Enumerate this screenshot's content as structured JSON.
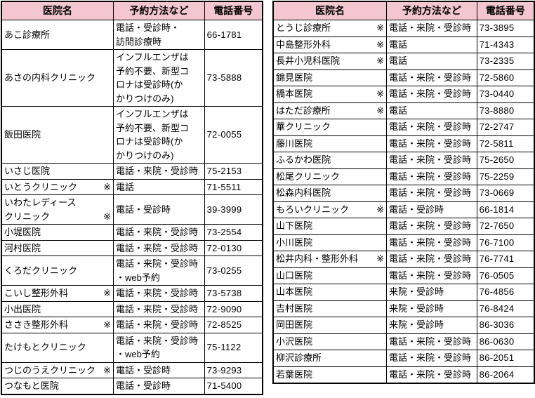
{
  "colors": {
    "page_bg": "#FFFFFF",
    "header_bg": "#F3C6D2",
    "border": "#000000",
    "text": "#000000"
  },
  "marker_symbol": "※",
  "headers": {
    "clinic": "医院名",
    "method": "予約方法など",
    "phone": "電話番号"
  },
  "left_table": {
    "rows": [
      {
        "name": "あこ診療所",
        "marker": "",
        "method": "電話・受診時・\n訪問診療時",
        "phone": "66-1781"
      },
      {
        "name": "あさの内科クリニック",
        "marker": "",
        "method": "インフルエンザは\n予約不要、新型コ\nロナは受診時(か\nかりつけのみ)",
        "phone": "73-5888"
      },
      {
        "name": "飯田医院",
        "marker": "",
        "method": "インフルエンザは\n予約不要、新型コ\nロナは受診時(か\nかりつけのみ)",
        "phone": "72-0055"
      },
      {
        "name": "いさじ医院",
        "marker": "",
        "method": "電話・来院・受診時",
        "phone": "75-2153"
      },
      {
        "name": "いとうクリニック",
        "marker": "※",
        "method": "電話",
        "phone": "71-5511"
      },
      {
        "name": "いわたレディース\nクリニック",
        "marker": "※",
        "method": "電話・受診時",
        "phone": "39-3999"
      },
      {
        "name": "小堤医院",
        "marker": "",
        "method": "電話・来院・受診時",
        "phone": "73-2554"
      },
      {
        "name": "河村医院",
        "marker": "",
        "method": "電話・来院・受診時",
        "phone": "72-0130"
      },
      {
        "name": "くろだクリニック",
        "marker": "",
        "method": "電話・来院・受診時\n・web予約",
        "phone": "73-0255"
      },
      {
        "name": "こいし整形外科",
        "marker": "※",
        "method": "電話・来院・受診時",
        "phone": "73-5738"
      },
      {
        "name": "小出医院",
        "marker": "",
        "method": "電話・来院・受診時",
        "phone": "72-9090"
      },
      {
        "name": "ささき整形外科",
        "marker": "※",
        "method": "電話・来院・受診時",
        "phone": "72-8525"
      },
      {
        "name": "たけもとクリニック",
        "marker": "",
        "method": "電話・来院・受診時\n・web予約",
        "phone": "75-1122"
      },
      {
        "name": "つじのうえクリニック",
        "marker": "※",
        "method": "電話・受診時",
        "phone": "73-9293"
      },
      {
        "name": "つなもと医院",
        "marker": "",
        "method": "電話・受診時",
        "phone": "71-5400"
      }
    ]
  },
  "right_table": {
    "rows": [
      {
        "name": "とうじ診療所",
        "marker": "※",
        "method": "電話・来院・受診時",
        "phone": "73-3895"
      },
      {
        "name": "中島整形外科",
        "marker": "※",
        "method": "電話",
        "phone": "71-4343"
      },
      {
        "name": "長井小児科医院",
        "marker": "※",
        "method": "電話",
        "phone": "73-2335"
      },
      {
        "name": "錦見医院",
        "marker": "",
        "method": "電話・来院・受診時",
        "phone": "72-5860"
      },
      {
        "name": "橋本医院",
        "marker": "※",
        "method": "電話・来院・受診時",
        "phone": "73-0440"
      },
      {
        "name": "はただ診療所",
        "marker": "※",
        "method": "電話",
        "phone": "73-8880"
      },
      {
        "name": "華クリニック",
        "marker": "",
        "method": "電話・来院・受診時",
        "phone": "72-2747"
      },
      {
        "name": "藤川医院",
        "marker": "",
        "method": "電話・来院・受診時",
        "phone": "72-5811"
      },
      {
        "name": "ふるかわ医院",
        "marker": "",
        "method": "電話・来院・受診時",
        "phone": "75-2650"
      },
      {
        "name": "松尾クリニック",
        "marker": "",
        "method": "電話・来院・受診時",
        "phone": "75-2259"
      },
      {
        "name": "松森内科医院",
        "marker": "",
        "method": "電話・来院・受診時",
        "phone": "73-0669"
      },
      {
        "name": "もろいクリニック",
        "marker": "※",
        "method": "電話・受診時",
        "phone": "66-1814"
      },
      {
        "name": "山下医院",
        "marker": "",
        "method": "電話・来院・受診時",
        "phone": "72-7650"
      },
      {
        "name": "小川医院",
        "marker": "",
        "method": "電話・来院・受診時",
        "phone": "76-7100"
      },
      {
        "name": "松井内科・整形外科",
        "marker": "※",
        "method": "電話・来院・受診時",
        "phone": "76-7741"
      },
      {
        "name": "山口医院",
        "marker": "",
        "method": "電話・来院・受診時",
        "phone": "76-0505"
      },
      {
        "name": "山本医院",
        "marker": "",
        "method": "来院・受診時",
        "phone": "76-4856"
      },
      {
        "name": "吉村医院",
        "marker": "",
        "method": "来院・受診時",
        "phone": "76-8424"
      },
      {
        "name": "岡田医院",
        "marker": "",
        "method": "来院・受診時",
        "phone": "86-3036"
      },
      {
        "name": "小沢医院",
        "marker": "",
        "method": "電話・来院・受診時",
        "phone": "86-0630"
      },
      {
        "name": "柳沢診療所",
        "marker": "",
        "method": "電話・来院・受診時",
        "phone": "86-2051"
      },
      {
        "name": "若葉医院",
        "marker": "",
        "method": "電話・来院・受診時",
        "phone": "86-2064"
      }
    ]
  }
}
